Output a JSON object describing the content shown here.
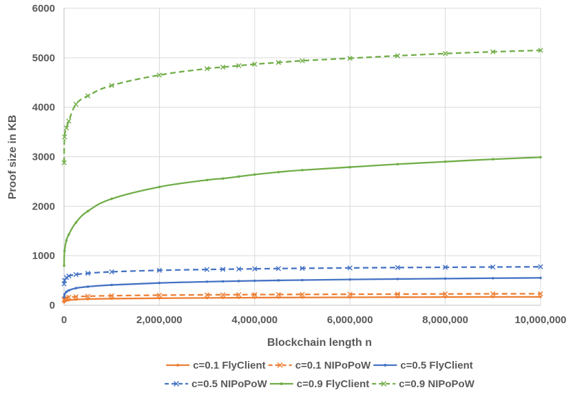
{
  "chart_data": {
    "type": "line",
    "title": "",
    "xlabel": "Blockchain length n",
    "ylabel": "Proof size in KB",
    "xlim": [
      0,
      10000000
    ],
    "ylim": [
      0,
      6000
    ],
    "xticks": [
      0,
      2000000,
      4000000,
      6000000,
      8000000,
      10000000
    ],
    "xtick_labels": [
      "0",
      "2,000,000",
      "4,000,000",
      "6,000,000",
      "8,000,000",
      "10,000,000"
    ],
    "yticks": [
      0,
      1000,
      2000,
      3000,
      4000,
      5000,
      6000
    ],
    "ytick_labels": [
      "0",
      "1000",
      "2000",
      "3000",
      "4000",
      "5000",
      "6000"
    ],
    "grid": true,
    "legend_position": "bottom",
    "series": [
      {
        "name": "c=0.1 FlyClient",
        "color": "#ED7D31",
        "dash": "solid",
        "marker": "dot",
        "points": [
          [
            1000,
            60
          ],
          [
            10000,
            80
          ],
          [
            50000,
            95
          ],
          [
            100000,
            103
          ],
          [
            250000,
            115
          ],
          [
            500000,
            124
          ],
          [
            1000000,
            133
          ],
          [
            2000000,
            142
          ],
          [
            3000000,
            148
          ],
          [
            3333333,
            150
          ],
          [
            3666667,
            151
          ],
          [
            4000000,
            153
          ],
          [
            4500000,
            155
          ],
          [
            5000000,
            157
          ],
          [
            6000000,
            160
          ],
          [
            7000000,
            163
          ],
          [
            8000000,
            165
          ],
          [
            9000000,
            167
          ],
          [
            10000000,
            169
          ]
        ]
      },
      {
        "name": "c=0.1 NIPoPoW",
        "color": "#ED7D31",
        "dash": "dashed",
        "marker": "x",
        "points": [
          [
            1000,
            110
          ],
          [
            10000,
            125
          ],
          [
            50000,
            150
          ],
          [
            100000,
            160
          ],
          [
            250000,
            172
          ],
          [
            500000,
            182
          ],
          [
            1000000,
            192
          ],
          [
            2000000,
            203
          ],
          [
            3000000,
            210
          ],
          [
            3333333,
            212
          ],
          [
            3666667,
            213
          ],
          [
            4000000,
            215
          ],
          [
            4500000,
            217
          ],
          [
            5000000,
            219
          ],
          [
            6000000,
            222
          ],
          [
            7000000,
            225
          ],
          [
            8000000,
            228
          ],
          [
            9000000,
            230
          ],
          [
            10000000,
            232
          ]
        ]
      },
      {
        "name": "c=0.5 FlyClient",
        "color": "#4472C4",
        "dash": "solid",
        "marker": "dot",
        "points": [
          [
            1000,
            165
          ],
          [
            10000,
            220
          ],
          [
            50000,
            270
          ],
          [
            100000,
            300
          ],
          [
            250000,
            345
          ],
          [
            500000,
            375
          ],
          [
            1000000,
            410
          ],
          [
            2000000,
            450
          ],
          [
            3000000,
            475
          ],
          [
            3333333,
            482
          ],
          [
            3666667,
            488
          ],
          [
            4000000,
            494
          ],
          [
            4500000,
            502
          ],
          [
            5000000,
            508
          ],
          [
            6000000,
            520
          ],
          [
            7000000,
            530
          ],
          [
            8000000,
            538
          ],
          [
            9000000,
            546
          ],
          [
            10000000,
            553
          ]
        ]
      },
      {
        "name": "c=0.5 NIPoPoW",
        "color": "#4472C4",
        "dash": "dashed",
        "marker": "x",
        "points": [
          [
            1000,
            430
          ],
          [
            10000,
            500
          ],
          [
            50000,
            560
          ],
          [
            100000,
            590
          ],
          [
            250000,
            620
          ],
          [
            500000,
            645
          ],
          [
            1000000,
            675
          ],
          [
            2000000,
            705
          ],
          [
            3000000,
            722
          ],
          [
            3333333,
            727
          ],
          [
            3666667,
            731
          ],
          [
            4000000,
            735
          ],
          [
            4500000,
            741
          ],
          [
            5000000,
            746
          ],
          [
            6000000,
            754
          ],
          [
            7000000,
            761
          ],
          [
            8000000,
            767
          ],
          [
            9000000,
            772
          ],
          [
            10000000,
            777
          ]
        ]
      },
      {
        "name": "c=0.9 FlyClient",
        "color": "#70AD47",
        "dash": "solid",
        "marker": "dot",
        "points": [
          [
            1000,
            800
          ],
          [
            10000,
            1100
          ],
          [
            50000,
            1310
          ],
          [
            100000,
            1430
          ],
          [
            250000,
            1670
          ],
          [
            500000,
            1900
          ],
          [
            1000000,
            2150
          ],
          [
            2000000,
            2390
          ],
          [
            3000000,
            2530
          ],
          [
            3333333,
            2560
          ],
          [
            3666667,
            2600
          ],
          [
            4000000,
            2640
          ],
          [
            4500000,
            2690
          ],
          [
            5000000,
            2730
          ],
          [
            6000000,
            2790
          ],
          [
            7000000,
            2850
          ],
          [
            8000000,
            2900
          ],
          [
            9000000,
            2950
          ],
          [
            10000000,
            2990
          ]
        ]
      },
      {
        "name": "c=0.9 NIPoPoW",
        "color": "#70AD47",
        "dash": "dashed",
        "marker": "x",
        "points": [
          [
            1000,
            2880
          ],
          [
            10000,
            3400
          ],
          [
            50000,
            3580
          ],
          [
            100000,
            3720
          ],
          [
            250000,
            4060
          ],
          [
            500000,
            4230
          ],
          [
            1000000,
            4440
          ],
          [
            2000000,
            4650
          ],
          [
            3000000,
            4780
          ],
          [
            3333333,
            4810
          ],
          [
            3666667,
            4840
          ],
          [
            4000000,
            4870
          ],
          [
            4500000,
            4905
          ],
          [
            5000000,
            4940
          ],
          [
            6000000,
            4990
          ],
          [
            7000000,
            5040
          ],
          [
            8000000,
            5085
          ],
          [
            9000000,
            5120
          ],
          [
            10000000,
            5150
          ]
        ]
      }
    ]
  }
}
